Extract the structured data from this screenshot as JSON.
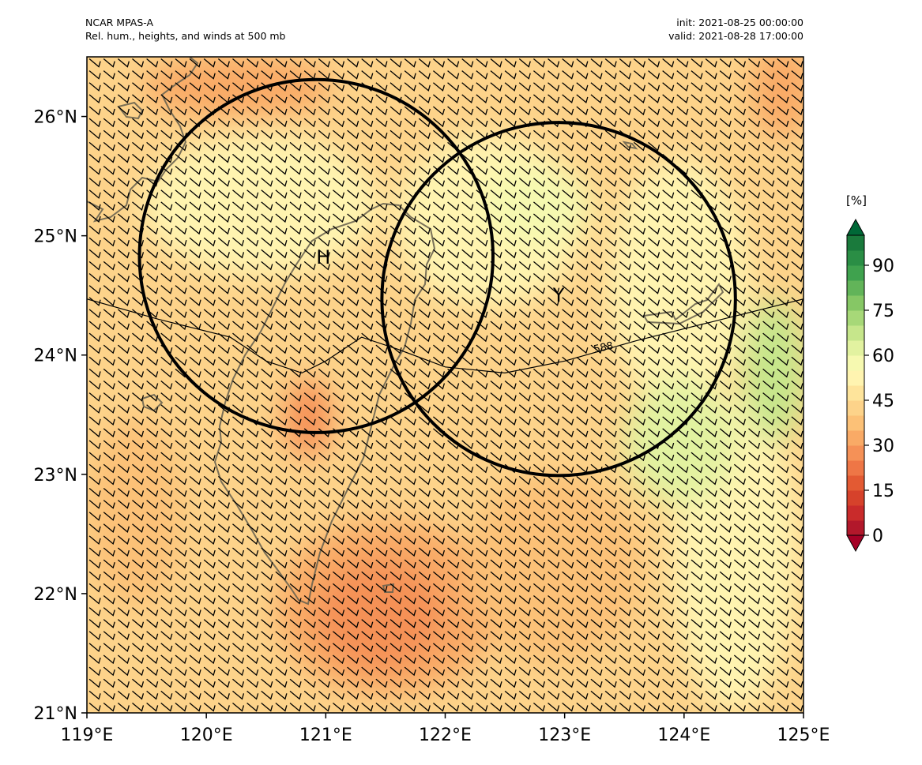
{
  "header": {
    "model": "NCAR MPAS-A",
    "field": "Rel. hum., heights, and winds at 500 mb",
    "init": "init: 2021-08-25 00:00:00",
    "valid": "valid: 2021-08-28 17:00:00"
  },
  "map": {
    "lon_range": [
      119,
      125
    ],
    "lat_range": [
      21,
      26.5
    ],
    "x_ticks": [
      {
        "value": 119,
        "label": "119°E"
      },
      {
        "value": 120,
        "label": "120°E"
      },
      {
        "value": 121,
        "label": "121°E"
      },
      {
        "value": 122,
        "label": "122°E"
      },
      {
        "value": 123,
        "label": "123°E"
      },
      {
        "value": 124,
        "label": "124°E"
      },
      {
        "value": 125,
        "label": "125°E"
      }
    ],
    "y_ticks": [
      {
        "value": 21,
        "label": "21°N"
      },
      {
        "value": 22,
        "label": "22°N"
      },
      {
        "value": 23,
        "label": "23°N"
      },
      {
        "value": 24,
        "label": "24°N"
      },
      {
        "value": 25,
        "label": "25°N"
      },
      {
        "value": 26,
        "label": "26°N"
      }
    ],
    "markers": [
      {
        "label": "H",
        "lon": 120.98,
        "lat": 24.82
      },
      {
        "label": "Y",
        "lon": 122.95,
        "lat": 24.5
      }
    ],
    "circles": [
      {
        "center_lon": 120.92,
        "center_lat": 24.83,
        "radius_deg": 1.48
      },
      {
        "center_lon": 122.95,
        "center_lat": 24.47,
        "radius_deg": 1.48
      }
    ],
    "height_contour": {
      "label": "588",
      "points": [
        [
          119,
          24.47
        ],
        [
          119.6,
          24.3
        ],
        [
          120.2,
          24.15
        ],
        [
          120.5,
          23.95
        ],
        [
          120.8,
          23.85
        ],
        [
          121.0,
          23.95
        ],
        [
          121.3,
          24.15
        ],
        [
          121.6,
          24.05
        ],
        [
          122.0,
          23.9
        ],
        [
          122.5,
          23.85
        ],
        [
          123.0,
          23.95
        ],
        [
          123.6,
          24.12
        ],
        [
          124.2,
          24.27
        ],
        [
          125,
          24.47
        ]
      ],
      "label_lon": 123.25,
      "label_lat": 24.02
    },
    "wind_barb": {
      "dx_deg": 0.12,
      "dy_deg": 0.1
    }
  },
  "colorbar": {
    "unit": "[%]",
    "levels": [
      0,
      5,
      10,
      15,
      20,
      25,
      30,
      35,
      40,
      45,
      50,
      55,
      60,
      65,
      70,
      75,
      80,
      85,
      90,
      95,
      100
    ],
    "colors": [
      "#b2182b",
      "#c92b2b",
      "#d6422b",
      "#e35a33",
      "#ee7646",
      "#f59157",
      "#f9aa66",
      "#fcc177",
      "#fdd38a",
      "#fee49b",
      "#fff4b0",
      "#f6f9b0",
      "#e2f2a0",
      "#c6e68b",
      "#a7d878",
      "#86c765",
      "#62b459",
      "#3fa24e",
      "#2a8e45",
      "#1a7a3c"
    ],
    "ticks": [
      {
        "value": 0,
        "label": "0"
      },
      {
        "value": 15,
        "label": "15"
      },
      {
        "value": 30,
        "label": "30"
      },
      {
        "value": 45,
        "label": "45"
      },
      {
        "value": 60,
        "label": "60"
      },
      {
        "value": 75,
        "label": "75"
      },
      {
        "value": 90,
        "label": "90"
      }
    ],
    "extend_low_color": "#a50026",
    "extend_high_color": "#006837"
  },
  "colors": {
    "field_base": "#fdd38a",
    "dry_core": "#f59157",
    "moist_patch": "#e2f2a0",
    "coastline": "#6b6450"
  }
}
